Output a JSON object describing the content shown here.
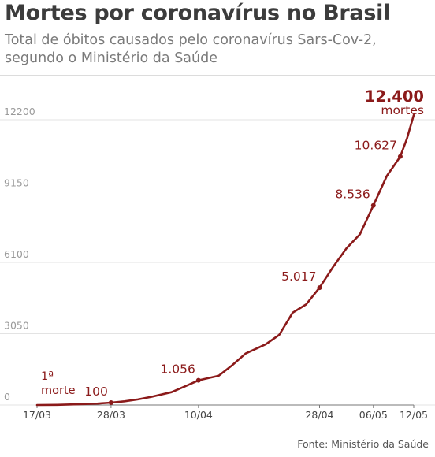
{
  "header": {
    "title": "Mortes por coronavírus no Brasil",
    "subtitle_line1": "Total de óbitos causados pelo coronavírus Sars-Cov-2,",
    "subtitle_line2": "segundo o Ministério da Saúde"
  },
  "footer": {
    "source": "Fonte: Ministério da Saúde"
  },
  "chart_data": {
    "type": "line",
    "title": "Mortes por coronavírus no Brasil",
    "subtitle": "Total de óbitos causados pelo coronavírus Sars-Cov-2, segundo o Ministério da Saúde",
    "xlabel": "",
    "ylabel": "",
    "ylim": [
      0,
      12400
    ],
    "yticks": [
      0,
      3050,
      6100,
      9150,
      12200
    ],
    "ytick_labels": [
      "0",
      "3050",
      "6100",
      "9150",
      "12200"
    ],
    "xticks": [
      "2020-03-17",
      "2020-03-28",
      "2020-04-10",
      "2020-04-28",
      "2020-05-06",
      "2020-05-12"
    ],
    "xtick_labels": [
      "17/03",
      "28/03",
      "10/04",
      "28/04",
      "06/05",
      "12/05"
    ],
    "grid": "horizontal",
    "line_color": "#8b1a1a",
    "series": [
      {
        "x": [
          "2020-03-17",
          "2020-03-20",
          "2020-03-23",
          "2020-03-26",
          "2020-03-28",
          "2020-03-30",
          "2020-04-01",
          "2020-04-03",
          "2020-04-06",
          "2020-04-08",
          "2020-04-10",
          "2020-04-13",
          "2020-04-15",
          "2020-04-17",
          "2020-04-20",
          "2020-04-22",
          "2020-04-24",
          "2020-04-26",
          "2020-04-28",
          "2020-04-30",
          "2020-05-02",
          "2020-05-04",
          "2020-05-06",
          "2020-05-08",
          "2020-05-10",
          "2020-05-11",
          "2020-05-12"
        ],
        "y": [
          1,
          6,
          30,
          60,
          100,
          160,
          240,
          350,
          550,
          800,
          1056,
          1250,
          1700,
          2200,
          2600,
          3000,
          3950,
          4300,
          5017,
          5900,
          6700,
          7300,
          8536,
          9800,
          10627,
          11400,
          12400
        ]
      }
    ],
    "labeled_points": [
      {
        "x": "2020-03-17",
        "label_line1": "1ª",
        "label_line2": "morte",
        "marker": false
      },
      {
        "x": "2020-03-28",
        "label_line1": "100",
        "marker": true
      },
      {
        "x": "2020-04-10",
        "label_line1": "1.056",
        "marker": true
      },
      {
        "x": "2020-04-28",
        "label_line1": "5.017",
        "marker": true
      },
      {
        "x": "2020-05-06",
        "label_line1": "8.536",
        "marker": true
      },
      {
        "x": "2020-05-10",
        "label_line1": "10.627",
        "marker": true
      },
      {
        "x": "2020-05-12",
        "label_line1": "12.400",
        "label_line2": "mortes",
        "marker": false
      }
    ]
  }
}
